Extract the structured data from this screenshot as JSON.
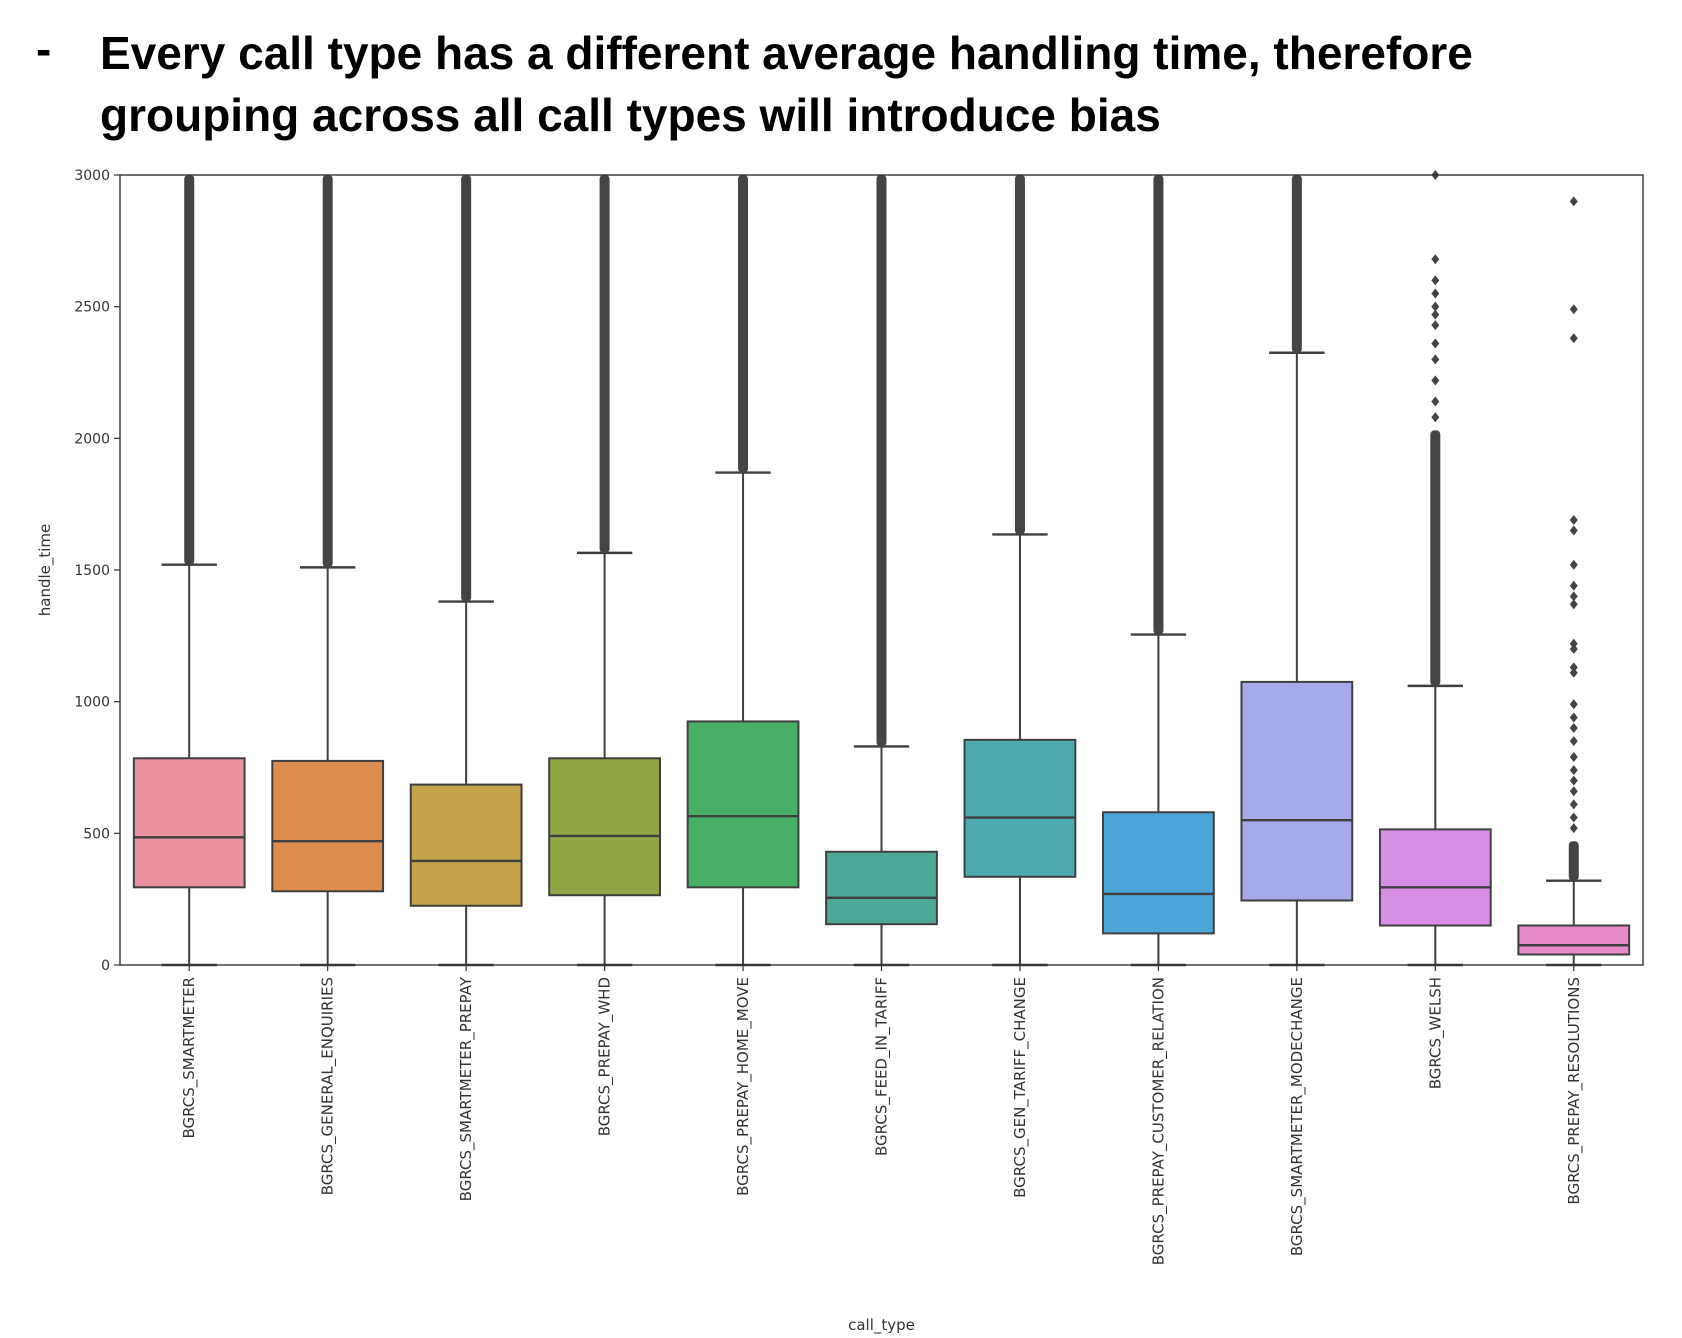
{
  "bullet": {
    "marker": "-",
    "text": "Every call type has a different average handling time, therefore grouping across all call types will introduce bias"
  },
  "chart_data": {
    "type": "box",
    "xlabel": "call_type",
    "ylabel": "handle_time",
    "ylim": [
      0,
      3000
    ],
    "yticks": [
      0,
      500,
      1000,
      1500,
      2000,
      2500,
      3000
    ],
    "grid": false,
    "categories": [
      "BGRCS_SMARTMETER",
      "BGRCS_GENERAL_ENQUIRIES",
      "BGRCS_SMARTMETER_PREPAY",
      "BGRCS_PREPAY_WHD",
      "BGRCS_PREPAY_HOME_MOVE",
      "BGRCS_FEED_IN_TARIFF",
      "BGRCS_GEN_TARIFF_CHANGE",
      "BGRCS_PREPAY_CUSTOMER_RELATION",
      "BGRCS_SMARTMETER_MODECHANGE",
      "BGRCS_WELSH",
      "BGRCS_PREPAY_RESOLUTIONS"
    ],
    "boxes": [
      {
        "whisker_low": 0,
        "q1": 295,
        "median": 485,
        "q3": 785,
        "whisker_high": 1520,
        "outliers_dense": [
          1520,
          3000
        ],
        "outliers": [],
        "color": "#e8929f"
      },
      {
        "whisker_low": 0,
        "q1": 280,
        "median": 470,
        "q3": 775,
        "whisker_high": 1510,
        "outliers_dense": [
          1510,
          3000
        ],
        "outliers": [],
        "color": "#dc8d4d"
      },
      {
        "whisker_low": 0,
        "q1": 225,
        "median": 395,
        "q3": 685,
        "whisker_high": 1380,
        "outliers_dense": [
          1380,
          3000
        ],
        "outliers": [],
        "color": "#c4a44b"
      },
      {
        "whisker_low": 0,
        "q1": 265,
        "median": 490,
        "q3": 785,
        "whisker_high": 1565,
        "outliers_dense": [
          1565,
          3000
        ],
        "outliers": [],
        "color": "#90a646"
      },
      {
        "whisker_low": 0,
        "q1": 295,
        "median": 565,
        "q3": 925,
        "whisker_high": 1870,
        "outliers_dense": [
          1870,
          3000
        ],
        "outliers": [],
        "color": "#47b066"
      },
      {
        "whisker_low": 0,
        "q1": 155,
        "median": 255,
        "q3": 430,
        "whisker_high": 830,
        "outliers_dense": [
          830,
          3000
        ],
        "outliers": [],
        "color": "#4aaa95"
      },
      {
        "whisker_low": 0,
        "q1": 335,
        "median": 560,
        "q3": 855,
        "whisker_high": 1635,
        "outliers_dense": [
          1635,
          3000
        ],
        "outliers": [],
        "color": "#4cabb1"
      },
      {
        "whisker_low": 0,
        "q1": 120,
        "median": 270,
        "q3": 580,
        "whisker_high": 1255,
        "outliers_dense": [
          1255,
          3000
        ],
        "outliers": [],
        "color": "#4ca6d7"
      },
      {
        "whisker_low": 0,
        "q1": 245,
        "median": 550,
        "q3": 1075,
        "whisker_high": 2325,
        "outliers_dense": [
          2325,
          3000
        ],
        "outliers": [],
        "color": "#a7a9ea"
      },
      {
        "whisker_low": 0,
        "q1": 150,
        "median": 295,
        "q3": 515,
        "whisker_high": 1060,
        "outliers_dense": [
          1060,
          2030
        ],
        "outliers": [
          2080,
          2140,
          2220,
          2300,
          2360,
          2430,
          2470,
          2500,
          2550,
          2600,
          2680,
          3000
        ],
        "color": "#d98ee6"
      },
      {
        "whisker_low": 0,
        "q1": 40,
        "median": 75,
        "q3": 150,
        "whisker_high": 320,
        "outliers_dense": [
          320,
          470
        ],
        "outliers": [
          520,
          560,
          610,
          660,
          700,
          740,
          790,
          850,
          900,
          940,
          990,
          1110,
          1130,
          1200,
          1220,
          1370,
          1400,
          1440,
          1520,
          1650,
          1690,
          2380,
          2490,
          2900
        ],
        "color": "#e78ac8"
      }
    ]
  }
}
